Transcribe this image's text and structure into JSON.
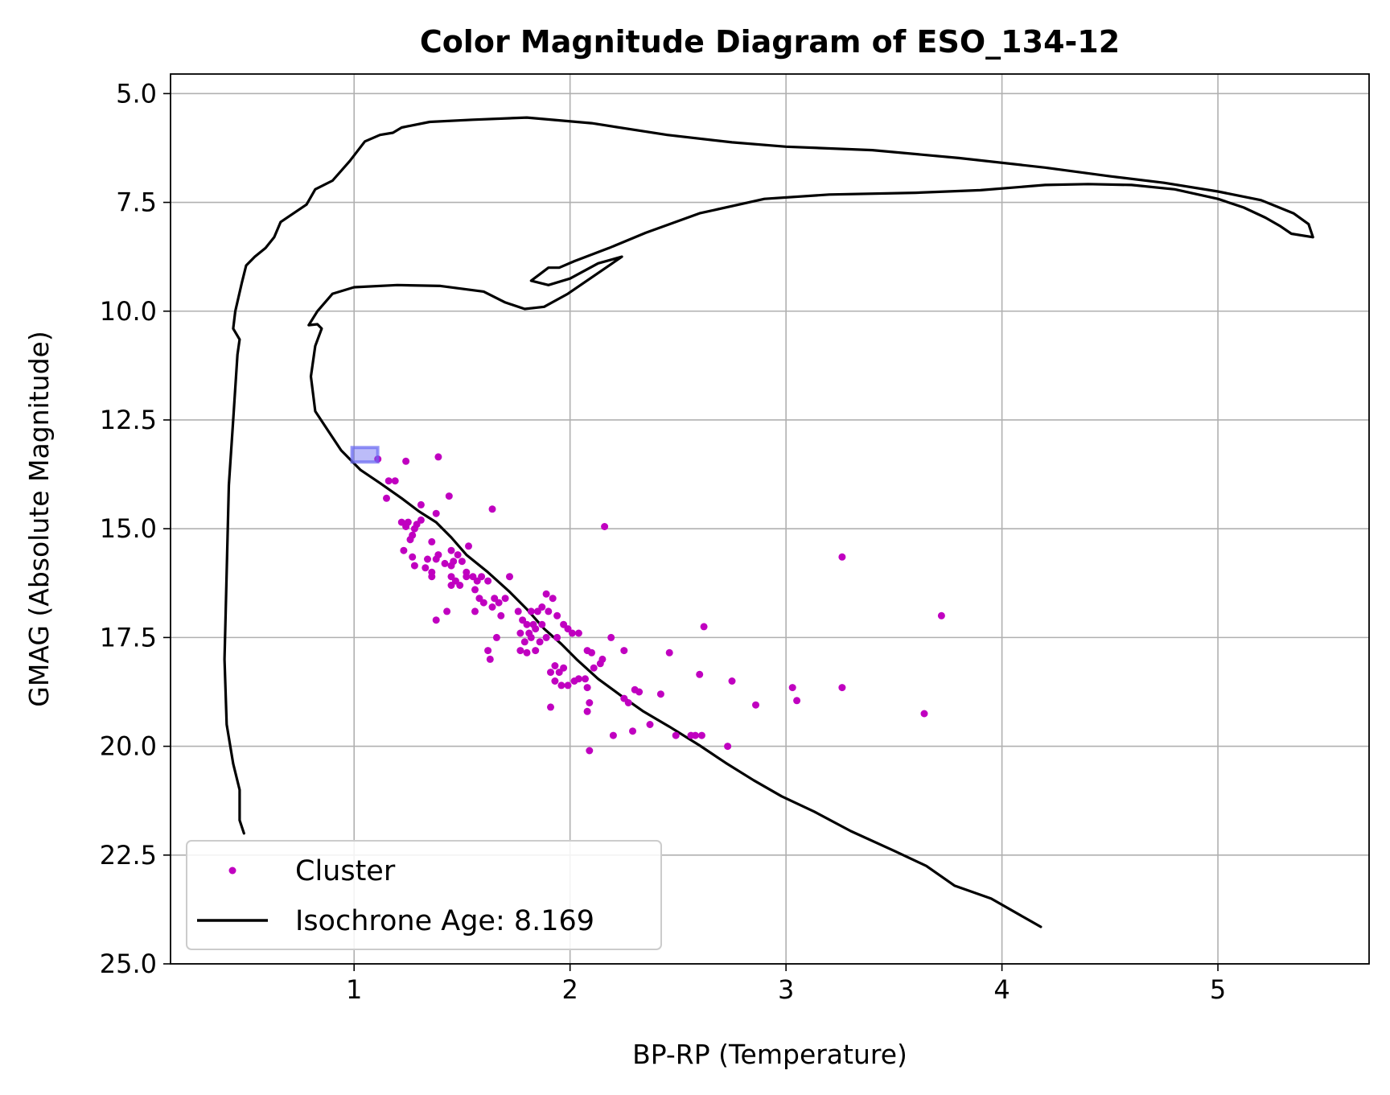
{
  "chart_data": {
    "type": "scatter",
    "title": "Color Magnitude Diagram of ESO_134-12",
    "xlabel": "BP-RP (Temperature)",
    "ylabel": "GMAG (Absolute Magnitude)",
    "xlim": [
      0.15,
      5.7
    ],
    "ylim": [
      25.0,
      4.55
    ],
    "y_inverted": true,
    "grid": true,
    "legend_position": "lower-left",
    "xticks": [
      1,
      2,
      3,
      4,
      5
    ],
    "xtick_labels": [
      "1",
      "2",
      "3",
      "4",
      "5"
    ],
    "yticks": [
      5.0,
      7.5,
      10.0,
      12.5,
      15.0,
      17.5,
      20.0,
      22.5,
      25.0
    ],
    "ytick_labels": [
      "5.0",
      "7.5",
      "10.0",
      "12.5",
      "15.0",
      "17.5",
      "20.0",
      "22.5",
      "25.0"
    ],
    "colors": {
      "cluster": "#c000c0",
      "isochrone": "#000000",
      "marker": "#6a6af2"
    },
    "series": [
      {
        "name": "Cluster",
        "kind": "scatter",
        "points": [
          [
            1.11,
            13.4
          ],
          [
            1.24,
            13.45
          ],
          [
            1.39,
            13.35
          ],
          [
            1.16,
            13.9
          ],
          [
            1.19,
            13.9
          ],
          [
            1.15,
            14.3
          ],
          [
            1.31,
            14.45
          ],
          [
            1.44,
            14.25
          ],
          [
            1.38,
            14.65
          ],
          [
            1.64,
            14.55
          ],
          [
            2.16,
            14.95
          ],
          [
            3.26,
            15.65
          ],
          [
            3.72,
            17.0
          ],
          [
            1.22,
            14.85
          ],
          [
            1.25,
            14.85
          ],
          [
            1.24,
            14.95
          ],
          [
            1.29,
            14.9
          ],
          [
            1.31,
            14.8
          ],
          [
            1.27,
            15.15
          ],
          [
            1.28,
            15.0
          ],
          [
            1.26,
            15.25
          ],
          [
            1.36,
            15.3
          ],
          [
            1.23,
            15.5
          ],
          [
            1.34,
            15.7
          ],
          [
            1.27,
            15.65
          ],
          [
            1.39,
            15.6
          ],
          [
            1.38,
            15.7
          ],
          [
            1.45,
            15.5
          ],
          [
            1.48,
            15.6
          ],
          [
            1.53,
            15.4
          ],
          [
            1.46,
            15.75
          ],
          [
            1.5,
            15.75
          ],
          [
            1.28,
            15.85
          ],
          [
            1.33,
            15.9
          ],
          [
            1.36,
            16.0
          ],
          [
            1.36,
            16.1
          ],
          [
            1.42,
            15.8
          ],
          [
            1.45,
            15.85
          ],
          [
            1.45,
            16.1
          ],
          [
            1.47,
            16.2
          ],
          [
            1.49,
            16.3
          ],
          [
            1.45,
            16.3
          ],
          [
            1.52,
            16.0
          ],
          [
            1.52,
            16.1
          ],
          [
            1.55,
            16.1
          ],
          [
            1.57,
            16.2
          ],
          [
            1.59,
            16.1
          ],
          [
            1.56,
            16.4
          ],
          [
            1.62,
            16.2
          ],
          [
            1.72,
            16.1
          ],
          [
            1.58,
            16.6
          ],
          [
            1.6,
            16.7
          ],
          [
            1.65,
            16.6
          ],
          [
            1.64,
            16.8
          ],
          [
            1.67,
            16.7
          ],
          [
            1.7,
            16.6
          ],
          [
            1.56,
            16.9
          ],
          [
            1.68,
            17.0
          ],
          [
            1.76,
            16.9
          ],
          [
            1.82,
            16.9
          ],
          [
            1.85,
            16.9
          ],
          [
            1.89,
            16.5
          ],
          [
            1.92,
            16.6
          ],
          [
            1.87,
            16.8
          ],
          [
            1.9,
            16.9
          ],
          [
            1.94,
            17.0
          ],
          [
            1.43,
            16.9
          ],
          [
            1.38,
            17.1
          ],
          [
            1.78,
            17.1
          ],
          [
            1.8,
            17.2
          ],
          [
            1.83,
            17.2
          ],
          [
            1.77,
            17.4
          ],
          [
            1.81,
            17.4
          ],
          [
            1.84,
            17.3
          ],
          [
            1.87,
            17.2
          ],
          [
            1.82,
            17.5
          ],
          [
            1.86,
            17.6
          ],
          [
            1.79,
            17.6
          ],
          [
            1.89,
            17.5
          ],
          [
            1.97,
            17.2
          ],
          [
            1.99,
            17.3
          ],
          [
            2.01,
            17.4
          ],
          [
            2.04,
            17.4
          ],
          [
            1.94,
            17.5
          ],
          [
            1.66,
            17.5
          ],
          [
            1.77,
            17.8
          ],
          [
            1.8,
            17.85
          ],
          [
            1.84,
            17.8
          ],
          [
            1.62,
            17.8
          ],
          [
            1.63,
            18.0
          ],
          [
            2.19,
            17.5
          ],
          [
            2.25,
            17.8
          ],
          [
            2.08,
            17.8
          ],
          [
            2.1,
            17.85
          ],
          [
            1.93,
            18.15
          ],
          [
            1.91,
            18.3
          ],
          [
            1.95,
            18.3
          ],
          [
            1.97,
            18.2
          ],
          [
            1.93,
            18.5
          ],
          [
            1.96,
            18.6
          ],
          [
            1.99,
            18.6
          ],
          [
            2.02,
            18.5
          ],
          [
            2.04,
            18.45
          ],
          [
            2.07,
            18.45
          ],
          [
            2.11,
            18.2
          ],
          [
            2.14,
            18.1
          ],
          [
            2.15,
            18.0
          ],
          [
            2.08,
            18.65
          ],
          [
            2.25,
            18.9
          ],
          [
            2.27,
            19.0
          ],
          [
            2.3,
            18.7
          ],
          [
            2.32,
            18.75
          ],
          [
            1.91,
            19.1
          ],
          [
            2.09,
            19.0
          ],
          [
            2.08,
            19.2
          ],
          [
            2.2,
            19.75
          ],
          [
            2.29,
            19.65
          ],
          [
            2.37,
            19.5
          ],
          [
            2.42,
            18.8
          ],
          [
            2.46,
            17.85
          ],
          [
            2.6,
            18.35
          ],
          [
            2.62,
            17.25
          ],
          [
            2.75,
            18.5
          ],
          [
            2.86,
            19.05
          ],
          [
            3.03,
            18.65
          ],
          [
            3.05,
            18.95
          ],
          [
            3.26,
            18.65
          ],
          [
            3.64,
            19.25
          ],
          [
            2.49,
            19.75
          ],
          [
            2.56,
            19.75
          ],
          [
            2.58,
            19.75
          ],
          [
            2.61,
            19.75
          ],
          [
            2.73,
            20.0
          ],
          [
            2.09,
            20.1
          ]
        ]
      },
      {
        "name": "Isochrone Age: 8.169",
        "kind": "line",
        "points": [
          [
            0.49,
            22.0
          ],
          [
            0.47,
            21.7
          ],
          [
            0.47,
            21.0
          ],
          [
            0.44,
            20.4
          ],
          [
            0.41,
            19.5
          ],
          [
            0.4,
            18.0
          ],
          [
            0.41,
            16.0
          ],
          [
            0.42,
            14.0
          ],
          [
            0.44,
            12.5
          ],
          [
            0.46,
            11.0
          ],
          [
            0.47,
            10.65
          ],
          [
            0.44,
            10.4
          ],
          [
            0.45,
            10.0
          ],
          [
            0.48,
            9.35
          ],
          [
            0.5,
            8.95
          ],
          [
            0.54,
            8.75
          ],
          [
            0.59,
            8.55
          ],
          [
            0.63,
            8.3
          ],
          [
            0.66,
            7.95
          ],
          [
            0.72,
            7.75
          ],
          [
            0.78,
            7.55
          ],
          [
            0.82,
            7.2
          ],
          [
            0.9,
            7.0
          ],
          [
            0.98,
            6.55
          ],
          [
            1.05,
            6.1
          ],
          [
            1.12,
            5.95
          ],
          [
            1.18,
            5.9
          ],
          [
            1.22,
            5.78
          ],
          [
            1.35,
            5.65
          ],
          [
            1.55,
            5.6
          ],
          [
            1.8,
            5.55
          ],
          [
            2.1,
            5.68
          ],
          [
            2.45,
            5.95
          ],
          [
            2.75,
            6.12
          ],
          [
            3.0,
            6.22
          ],
          [
            3.4,
            6.3
          ],
          [
            3.8,
            6.48
          ],
          [
            4.2,
            6.7
          ],
          [
            4.5,
            6.9
          ],
          [
            4.75,
            7.05
          ],
          [
            5.0,
            7.25
          ],
          [
            5.2,
            7.45
          ],
          [
            5.35,
            7.75
          ],
          [
            5.42,
            8.0
          ],
          [
            5.44,
            8.3
          ],
          [
            5.34,
            8.22
          ],
          [
            5.29,
            8.05
          ],
          [
            5.22,
            7.85
          ],
          [
            5.12,
            7.62
          ],
          [
            5.0,
            7.42
          ],
          [
            4.8,
            7.2
          ],
          [
            4.6,
            7.1
          ],
          [
            4.4,
            7.08
          ],
          [
            4.2,
            7.1
          ],
          [
            3.9,
            7.22
          ],
          [
            3.6,
            7.28
          ],
          [
            3.2,
            7.32
          ],
          [
            2.9,
            7.42
          ],
          [
            2.6,
            7.75
          ],
          [
            2.35,
            8.2
          ],
          [
            2.18,
            8.55
          ],
          [
            2.02,
            8.85
          ],
          [
            1.95,
            9.0
          ],
          [
            1.9,
            9.0
          ],
          [
            1.86,
            9.15
          ],
          [
            1.82,
            9.3
          ],
          [
            1.9,
            9.4
          ],
          [
            2.0,
            9.25
          ],
          [
            2.13,
            8.9
          ],
          [
            2.24,
            8.75
          ],
          [
            1.99,
            9.6
          ],
          [
            1.88,
            9.9
          ],
          [
            1.79,
            9.95
          ],
          [
            1.7,
            9.8
          ],
          [
            1.6,
            9.55
          ],
          [
            1.4,
            9.42
          ],
          [
            1.2,
            9.4
          ],
          [
            1.0,
            9.45
          ],
          [
            0.9,
            9.6
          ],
          [
            0.83,
            10.0
          ],
          [
            0.79,
            10.32
          ],
          [
            0.83,
            10.3
          ],
          [
            0.85,
            10.4
          ],
          [
            0.82,
            10.8
          ],
          [
            0.8,
            11.5
          ],
          [
            0.82,
            12.3
          ],
          [
            0.88,
            12.75
          ],
          [
            0.94,
            13.2
          ],
          [
            1.03,
            13.65
          ],
          [
            1.12,
            13.95
          ],
          [
            1.22,
            14.3
          ],
          [
            1.3,
            14.6
          ],
          [
            1.38,
            14.85
          ],
          [
            1.45,
            15.2
          ],
          [
            1.52,
            15.6
          ],
          [
            1.62,
            16.0
          ],
          [
            1.72,
            16.45
          ],
          [
            1.8,
            16.85
          ],
          [
            1.88,
            17.3
          ],
          [
            1.96,
            17.65
          ],
          [
            2.03,
            18.0
          ],
          [
            2.13,
            18.45
          ],
          [
            2.24,
            18.85
          ],
          [
            2.34,
            19.2
          ],
          [
            2.46,
            19.55
          ],
          [
            2.6,
            19.98
          ],
          [
            2.72,
            20.38
          ],
          [
            2.85,
            20.78
          ],
          [
            2.98,
            21.15
          ],
          [
            3.13,
            21.5
          ],
          [
            3.3,
            21.95
          ],
          [
            3.5,
            22.4
          ],
          [
            3.65,
            22.75
          ],
          [
            3.78,
            23.2
          ],
          [
            3.95,
            23.5
          ],
          [
            4.18,
            24.15
          ]
        ]
      }
    ],
    "marker": {
      "kind": "square",
      "x": 1.05,
      "y": 13.3
    }
  }
}
